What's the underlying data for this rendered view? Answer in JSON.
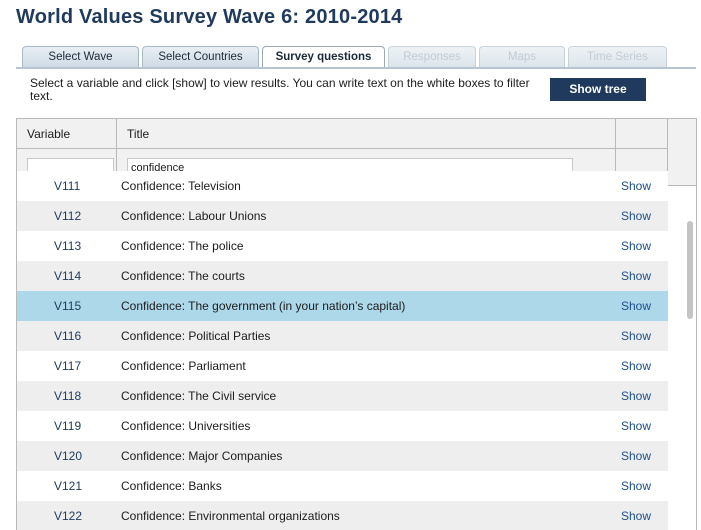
{
  "title": "World Values Survey Wave 6: 2010-2014",
  "tabs": [
    {
      "label": "Select Wave",
      "state": "normal"
    },
    {
      "label": "Select Countries",
      "state": "normal"
    },
    {
      "label": "Survey questions",
      "state": "active"
    },
    {
      "label": "Responses",
      "state": "disabled"
    },
    {
      "label": "Maps",
      "state": "disabled"
    },
    {
      "label": "Time Series",
      "state": "disabled"
    }
  ],
  "instructions": "Select a variable and click [show] to view results. You can write text on the white boxes to filter text.",
  "show_tree_label": "Show tree",
  "table": {
    "headers": {
      "variable": "Variable",
      "title": "Title"
    },
    "filters": {
      "variable": "",
      "title": "confidence"
    },
    "show_label": "Show",
    "rows": [
      {
        "variable": "V111",
        "title": "Confidence: Television",
        "selected": false
      },
      {
        "variable": "V112",
        "title": "Confidence: Labour Unions",
        "selected": false
      },
      {
        "variable": "V113",
        "title": "Confidence: The police",
        "selected": false
      },
      {
        "variable": "V114",
        "title": "Confidence: The courts",
        "selected": false
      },
      {
        "variable": "V115",
        "title": "Confidence: The government (in your nation’s capital)",
        "selected": true
      },
      {
        "variable": "V116",
        "title": "Confidence: Political Parties",
        "selected": false
      },
      {
        "variable": "V117",
        "title": "Confidence: Parliament",
        "selected": false
      },
      {
        "variable": "V118",
        "title": "Confidence: The Civil service",
        "selected": false
      },
      {
        "variable": "V119",
        "title": "Confidence: Universities",
        "selected": false
      },
      {
        "variable": "V120",
        "title": "Confidence: Major Companies",
        "selected": false
      },
      {
        "variable": "V121",
        "title": "Confidence: Banks",
        "selected": false
      },
      {
        "variable": "V122",
        "title": "Confidence: Environmental organizations",
        "selected": false
      }
    ]
  },
  "colors": {
    "brand": "#1f3a5c",
    "selected_row": "#add8ea",
    "alt_row": "#eeeeee",
    "link": "#1f4f8a"
  }
}
